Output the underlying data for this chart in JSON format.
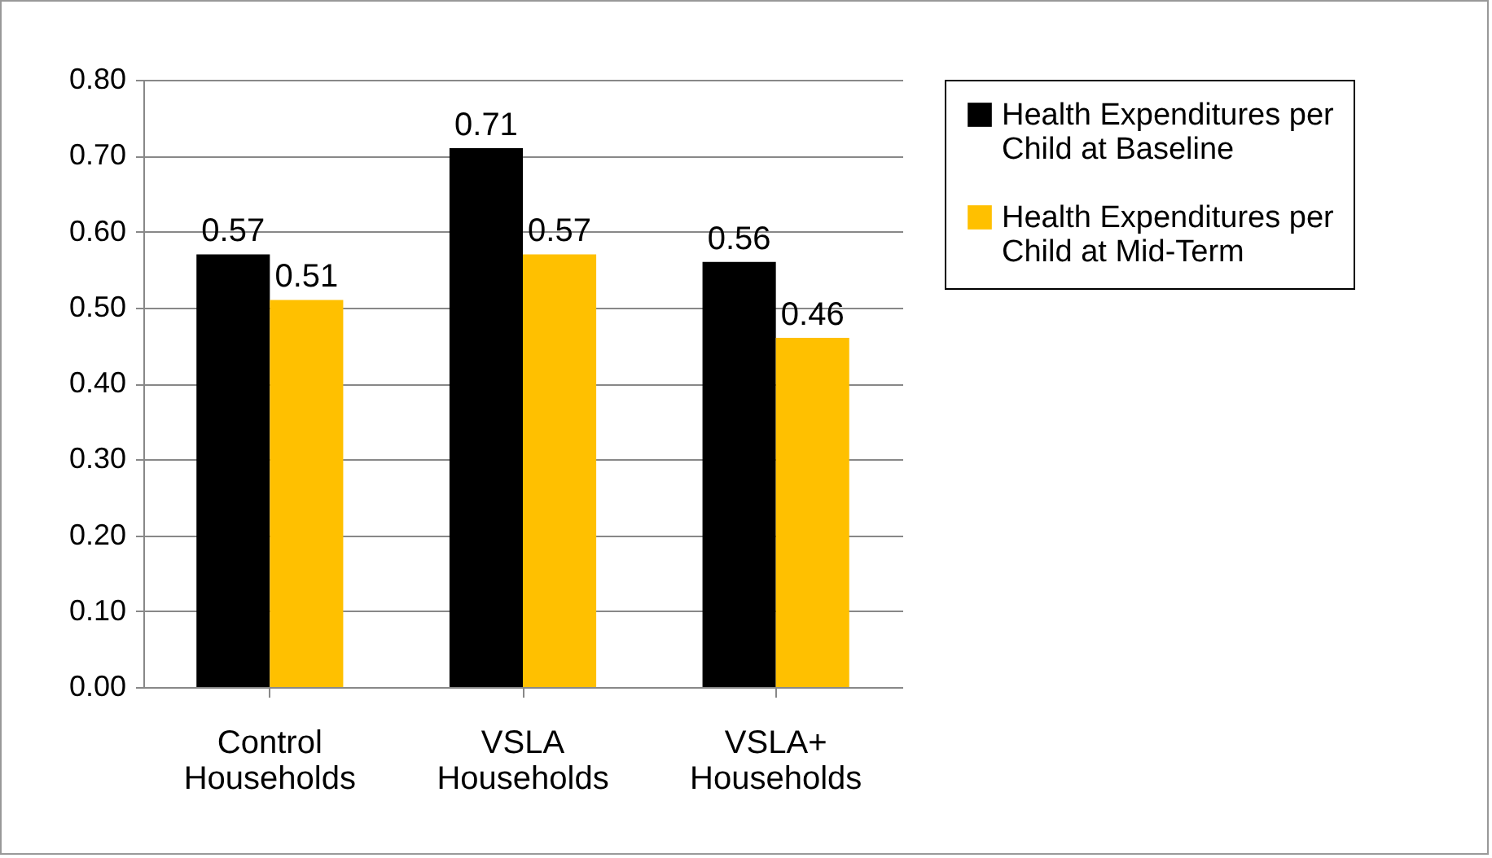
{
  "chart_data": {
    "type": "bar",
    "categories": [
      "Control Households",
      "VSLA Households",
      "VSLA+ Households"
    ],
    "series": [
      {
        "name": "Health Expenditures per Child at Baseline",
        "color": "#000000",
        "values": [
          0.57,
          0.71,
          0.56
        ]
      },
      {
        "name": "Health Expenditures per Child at Mid-Term",
        "color": "#ffc000",
        "values": [
          0.51,
          0.57,
          0.46
        ]
      }
    ],
    "ylim": [
      0,
      0.8
    ],
    "yticks": [
      {
        "value": 0,
        "label": "0.00"
      },
      {
        "value": 0.1,
        "label": "0.10"
      },
      {
        "value": 0.2,
        "label": "0.20"
      },
      {
        "value": 0.3,
        "label": "0.30"
      },
      {
        "value": 0.4,
        "label": "0.40"
      },
      {
        "value": 0.5,
        "label": "0.50"
      },
      {
        "value": 0.6,
        "label": "0.60"
      },
      {
        "value": 0.7,
        "label": "0.70"
      },
      {
        "value": 0.8,
        "label": "0.80"
      }
    ],
    "grid": "y",
    "legend": "right",
    "data_labels": true
  }
}
